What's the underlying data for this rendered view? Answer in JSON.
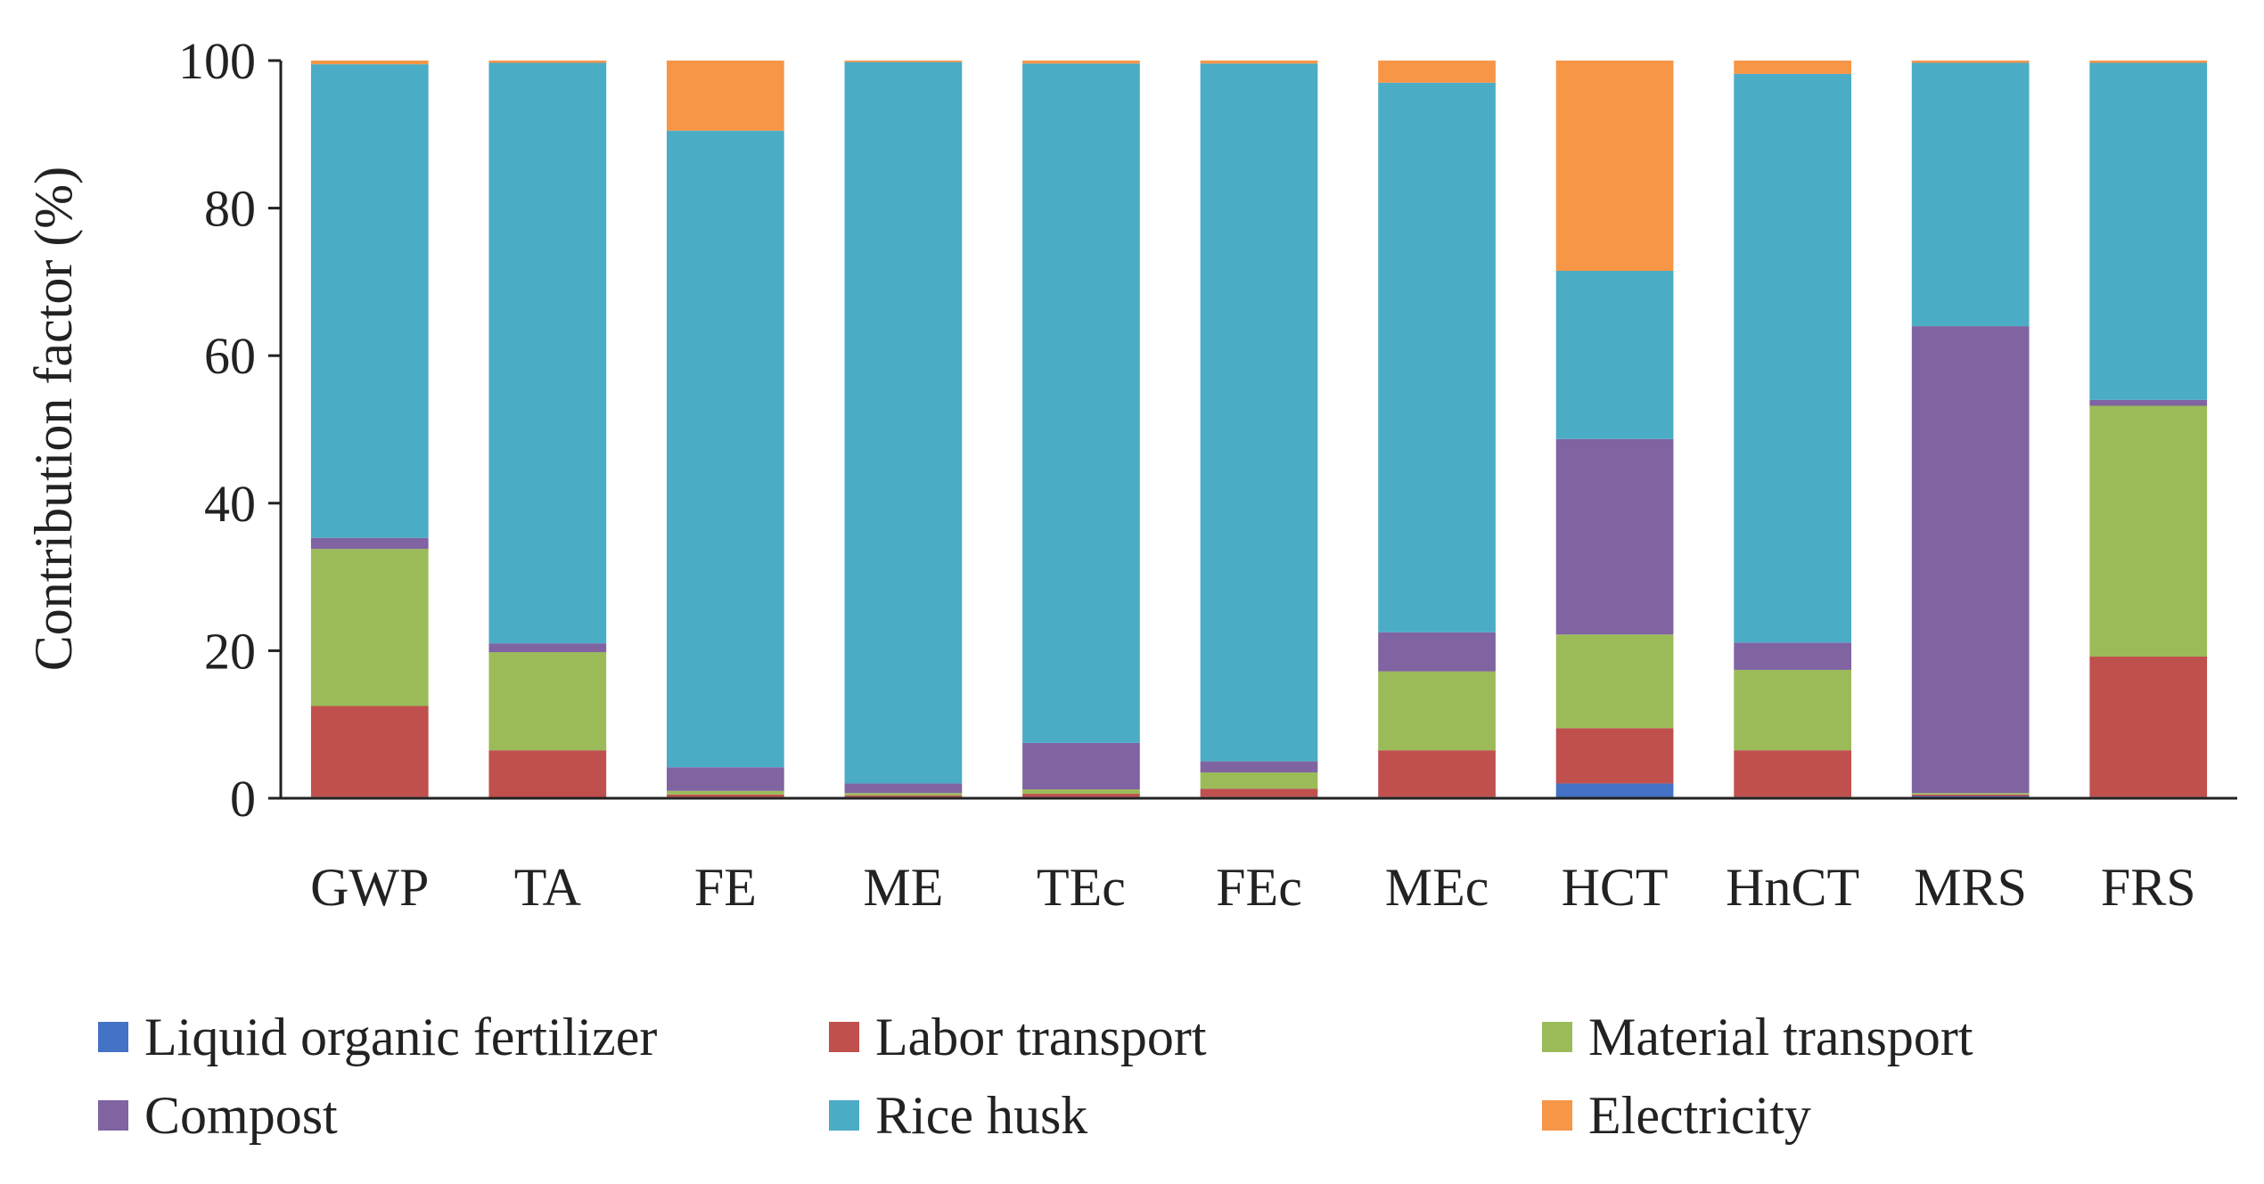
{
  "chart_data": {
    "type": "bar",
    "stacked": true,
    "ylabel": "Contribution factor  (%)",
    "xlabel": "",
    "ylim": [
      0,
      100
    ],
    "yticks": [
      "0",
      "20",
      "40",
      "60",
      "80",
      "100"
    ],
    "ytick_values": [
      0,
      20,
      40,
      60,
      80,
      100
    ],
    "grid": false,
    "legend_position": "bottom",
    "categories": [
      "GWP",
      "TA",
      "FE",
      "ME",
      "TEc",
      "FEc",
      "MEc",
      "HCT",
      "HnCT",
      "MRS",
      "FRS"
    ],
    "series": [
      {
        "name": "Liquid organic fertilizer",
        "color": "#4472C4",
        "values": [
          0.2,
          0.1,
          0.2,
          0.2,
          0.2,
          0.2,
          0.2,
          2.0,
          0.2,
          0.3,
          0.2
        ]
      },
      {
        "name": "Labor transport",
        "color": "#C0504D",
        "values": [
          12.3,
          6.4,
          0.3,
          0.2,
          0.4,
          1.1,
          6.3,
          7.5,
          6.3,
          0.2,
          19.0
        ]
      },
      {
        "name": "Material transport",
        "color": "#9BBB59",
        "values": [
          21.3,
          13.3,
          0.5,
          0.3,
          0.6,
          2.2,
          10.7,
          12.7,
          10.9,
          0.2,
          34.0
        ]
      },
      {
        "name": "Compost",
        "color": "#8064A2",
        "values": [
          1.5,
          1.2,
          3.2,
          1.3,
          6.3,
          1.5,
          5.3,
          26.5,
          3.7,
          63.3,
          0.8
        ]
      },
      {
        "name": "Rice husk",
        "color": "#4BACC6",
        "values": [
          64.2,
          78.7,
          86.3,
          97.8,
          92.1,
          94.6,
          74.5,
          22.8,
          77.1,
          35.7,
          45.7
        ]
      },
      {
        "name": "Electricity",
        "color": "#F79646",
        "values": [
          0.5,
          0.3,
          9.5,
          0.2,
          0.4,
          0.4,
          3.0,
          28.5,
          1.8,
          0.3,
          0.3
        ]
      }
    ]
  }
}
